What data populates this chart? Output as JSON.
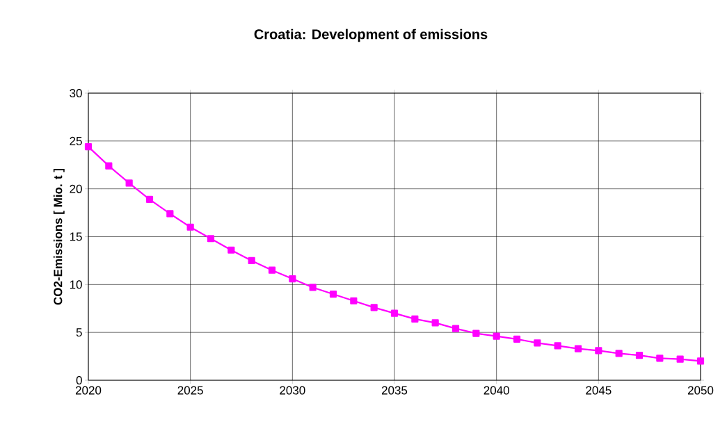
{
  "chart_data": {
    "type": "line",
    "title": "Croatia: Development of emissions",
    "ylabel": "CO2-Emissions [ Mio. t ]",
    "x": [
      2020,
      2021,
      2022,
      2023,
      2024,
      2025,
      2026,
      2027,
      2028,
      2029,
      2030,
      2031,
      2032,
      2033,
      2034,
      2035,
      2036,
      2037,
      2038,
      2039,
      2040,
      2041,
      2042,
      2043,
      2044,
      2045,
      2046,
      2047,
      2048,
      2049,
      2050
    ],
    "series": [
      {
        "color": "#ff00ff",
        "values": [
          24.4,
          22.4,
          20.6,
          18.9,
          17.4,
          16.0,
          14.8,
          13.6,
          12.5,
          11.5,
          10.6,
          9.7,
          9.0,
          8.3,
          7.6,
          7.0,
          6.4,
          6.0,
          5.4,
          4.9,
          4.6,
          4.3,
          3.9,
          3.6,
          3.3,
          3.1,
          2.8,
          2.6,
          2.3,
          2.2,
          2.0
        ]
      }
    ],
    "xlim": [
      2020,
      2050
    ],
    "ylim": [
      0,
      30
    ],
    "xticks": [
      2020,
      2025,
      2030,
      2035,
      2040,
      2045,
      2050
    ],
    "yticks": [
      0,
      5,
      10,
      15,
      20,
      25,
      30
    ],
    "grid": true,
    "marker": "square",
    "line_style": "solid"
  }
}
